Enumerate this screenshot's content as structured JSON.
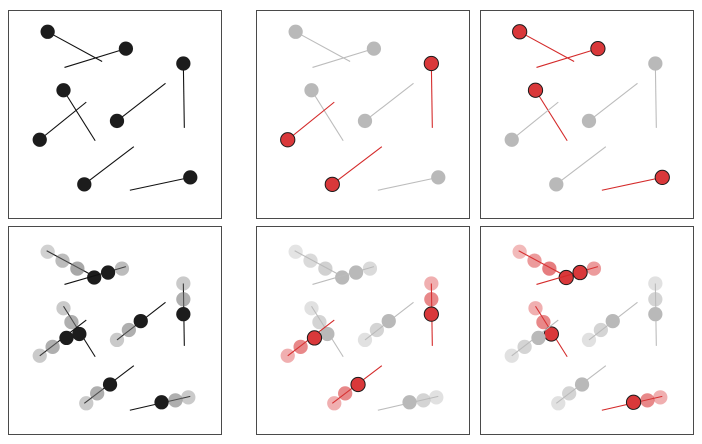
{
  "colors": {
    "black": "#1c1c1c",
    "black_line": "#111111",
    "gray_dot": "#b9b9b9",
    "gray_line": "#bcbcbc",
    "red_dot": "#d9383a",
    "red_line": "#d42a2a",
    "dot_stroke": "#1a1a1a",
    "ghost_dot": "#e6e6e6",
    "ghost_red": "#f3cccc",
    "ghost_blue": "#eef4f9"
  },
  "panel_states": {
    "p1": [
      "black",
      "black",
      "black",
      "black",
      "black",
      "black",
      "black"
    ],
    "p2": [
      "gray",
      "gray",
      "gray",
      "red",
      "gray",
      "red",
      "red"
    ],
    "p3": [
      "red",
      "red",
      "red",
      "gray",
      "gray",
      "gray",
      "gray"
    ],
    "p4": [
      "black",
      "black",
      "black",
      "black",
      "black",
      "black",
      "black"
    ],
    "p5": [
      "gray",
      "gray",
      "gray",
      "red",
      "gray",
      "red",
      "red"
    ],
    "p6": [
      "red",
      "red",
      "red",
      "gray",
      "gray",
      "gray",
      "gray"
    ]
  }
}
